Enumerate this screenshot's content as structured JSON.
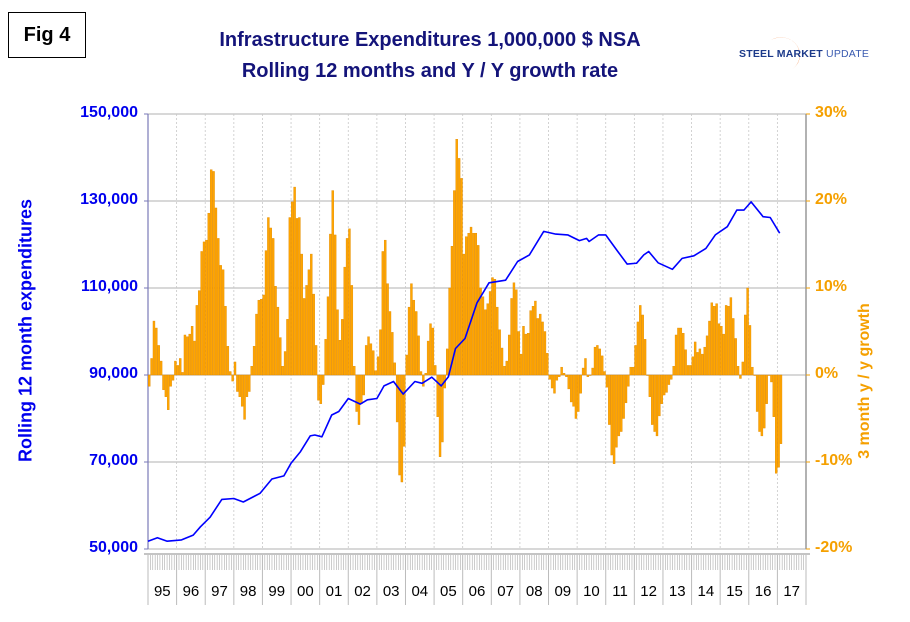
{
  "figure_label": "Fig 4",
  "logo": {
    "word1": "STEEL",
    "word2": "MARKET",
    "word3": "UPDATE"
  },
  "colors": {
    "line": "#0000ff",
    "bars": "#ffa500",
    "bar_edge": "#e08a00",
    "title": "#14147a",
    "left_axis": "#0000ee",
    "right_axis": "#f5a000"
  },
  "chart_data": {
    "type": "bar+line",
    "title": "Infrastructure Expenditures 1,000,000 $ NSA",
    "subtitle": "Rolling 12 months and Y / Y growth rate",
    "ylabel_left": "Rolling 12 month expenditures",
    "ylabel_right": "3 month y / y growth",
    "ylim_left": [
      50000,
      150000
    ],
    "ylim_right": [
      -20,
      30
    ],
    "yticks_left": [
      "150,000",
      "130,000",
      "110,000",
      "90,000",
      "70,000",
      "50,000"
    ],
    "yticks_left_values": [
      150000,
      130000,
      110000,
      90000,
      70000,
      50000
    ],
    "yticks_right": [
      "30%",
      "20%",
      "10%",
      "0%",
      "-10%",
      "-20%"
    ],
    "yticks_right_values": [
      30,
      20,
      10,
      0,
      -10,
      -20
    ],
    "xlim_years": [
      1995,
      2018
    ],
    "x_tick_labels": [
      "95",
      "96",
      "97",
      "98",
      "99",
      "00",
      "01",
      "02",
      "03",
      "04",
      "05",
      "06",
      "07",
      "08",
      "09",
      "10",
      "11",
      "12",
      "13",
      "14",
      "15",
      "16",
      "17"
    ],
    "grid": true,
    "series": [
      {
        "name": "3 month y/y growth (%)",
        "kind": "bar",
        "axis": "right",
        "start": "1995-01",
        "frequency": "monthly",
        "values": [
          -1.3,
          1.9,
          6.2,
          5.4,
          3.4,
          1.6,
          -1.7,
          -2.5,
          -4.0,
          -1.3,
          -0.6,
          1.6,
          1.1,
          1.9,
          0.3,
          4.6,
          4.4,
          4.7,
          5.6,
          3.9,
          8.0,
          9.7,
          14.2,
          15.3,
          15.5,
          18.6,
          23.6,
          23.4,
          19.2,
          15.7,
          12.6,
          12.1,
          7.9,
          3.3,
          0.4,
          -0.7,
          1.5,
          -1.9,
          -2.5,
          -3.6,
          -5.1,
          -2.5,
          -1.9,
          1.0,
          3.3,
          7.0,
          8.6,
          8.7,
          9.2,
          14.3,
          18.1,
          16.9,
          15.7,
          10.2,
          7.8,
          4.3,
          1.0,
          2.7,
          6.4,
          18.1,
          19.9,
          21.6,
          18.0,
          18.1,
          13.9,
          8.8,
          10.3,
          12.1,
          13.9,
          9.3,
          3.4,
          -2.9,
          -3.3,
          -1.1,
          4.1,
          9.0,
          16.2,
          21.2,
          16.1,
          7.5,
          4.0,
          6.4,
          12.4,
          15.7,
          16.8,
          10.3,
          1.0,
          -4.2,
          -5.7,
          -3.3,
          -2.3,
          3.4,
          4.4,
          3.6,
          2.8,
          0.5,
          2.1,
          5.2,
          14.2,
          15.5,
          10.5,
          7.3,
          4.9,
          1.4,
          -5.4,
          -11.5,
          -12.3,
          -8.2,
          2.3,
          7.8,
          10.5,
          8.6,
          7.3,
          4.5,
          0.4,
          -1.3,
          0.2,
          3.9,
          5.9,
          5.4,
          1.1,
          -4.8,
          -9.4,
          -7.7,
          -1.5,
          3.0,
          10.0,
          14.8,
          21.2,
          27.1,
          24.9,
          22.6,
          13.9,
          15.9,
          16.3,
          17.0,
          16.3,
          16.3,
          14.9,
          10.0,
          9.0,
          7.5,
          8.2,
          9.6,
          11.2,
          11.0,
          7.8,
          5.2,
          3.1,
          1.0,
          1.6,
          4.6,
          8.8,
          10.6,
          9.8,
          5.0,
          2.4,
          5.6,
          4.7,
          4.8,
          7.4,
          7.9,
          8.5,
          6.5,
          7.0,
          6.1,
          5.0,
          2.5,
          -0.5,
          -1.5,
          -2.1,
          -0.6,
          -0.2,
          0.9,
          0.2,
          -0.2,
          -1.6,
          -3.1,
          -3.6,
          -5.0,
          -4.2,
          -2.1,
          0.8,
          1.9,
          -0.2,
          0,
          0.8,
          3.2,
          3.4,
          3.0,
          2.2,
          0.4,
          -1.4,
          -5.7,
          -9.2,
          -10.2,
          -8.3,
          -7.0,
          -6.5,
          -5.0,
          -3.2,
          -1.3,
          0.9,
          0.9,
          3.4,
          6.1,
          8.0,
          6.9,
          4.1,
          0,
          -2.5,
          -5.7,
          -6.5,
          -7.0,
          -4.7,
          -3.3,
          -2.3,
          -2.0,
          -1.1,
          -0.5,
          1.0,
          4.6,
          5.4,
          5.4,
          4.8,
          2.9,
          1.1,
          1.1,
          2.1,
          3.8,
          2.6,
          3.0,
          2.4,
          3.2,
          4.5,
          6.2,
          8.3,
          7.9,
          8.2,
          5.9,
          5.6,
          4.7,
          8.0,
          7.9,
          8.9,
          6.5,
          4.2,
          1.0,
          -0.4,
          1.5,
          6.9,
          10.0,
          5.7,
          0.9,
          0,
          -4.2,
          -6.5,
          -7.0,
          -6.1,
          -3.3,
          0,
          -0.8,
          -4.8,
          -11.3,
          -10.6,
          -7.9
        ]
      },
      {
        "name": "Rolling 12 month expenditures ($ millions)",
        "kind": "line",
        "axis": "left",
        "points": [
          [
            1995.0,
            51800
          ],
          [
            1995.33,
            52600
          ],
          [
            1995.67,
            51800
          ],
          [
            1996.17,
            52100
          ],
          [
            1996.58,
            53200
          ],
          [
            1996.83,
            55100
          ],
          [
            1997.17,
            57300
          ],
          [
            1997.58,
            61400
          ],
          [
            1998.0,
            61600
          ],
          [
            1998.33,
            60800
          ],
          [
            1998.92,
            62800
          ],
          [
            1999.33,
            66100
          ],
          [
            1999.75,
            66800
          ],
          [
            2000.0,
            69700
          ],
          [
            2000.33,
            72400
          ],
          [
            2000.67,
            76000
          ],
          [
            2000.83,
            76200
          ],
          [
            2001.08,
            75800
          ],
          [
            2001.42,
            80800
          ],
          [
            2001.67,
            81600
          ],
          [
            2002.0,
            84600
          ],
          [
            2002.42,
            83300
          ],
          [
            2002.67,
            84300
          ],
          [
            2003.0,
            84600
          ],
          [
            2003.25,
            87500
          ],
          [
            2003.58,
            88500
          ],
          [
            2003.92,
            85600
          ],
          [
            2004.33,
            88500
          ],
          [
            2004.58,
            88100
          ],
          [
            2004.92,
            89500
          ],
          [
            2005.25,
            87500
          ],
          [
            2005.5,
            89600
          ],
          [
            2005.75,
            96100
          ],
          [
            2006.08,
            98400
          ],
          [
            2006.5,
            106600
          ],
          [
            2006.92,
            111200
          ],
          [
            2007.5,
            111800
          ],
          [
            2007.92,
            116100
          ],
          [
            2008.33,
            117600
          ],
          [
            2008.83,
            123000
          ],
          [
            2009.25,
            122400
          ],
          [
            2009.67,
            122200
          ],
          [
            2010.08,
            120900
          ],
          [
            2010.33,
            121400
          ],
          [
            2010.42,
            120700
          ],
          [
            2010.75,
            122200
          ],
          [
            2011.0,
            122200
          ],
          [
            2011.42,
            118400
          ],
          [
            2011.75,
            115500
          ],
          [
            2012.08,
            115700
          ],
          [
            2012.33,
            117600
          ],
          [
            2012.5,
            118400
          ],
          [
            2012.83,
            115800
          ],
          [
            2013.33,
            114300
          ],
          [
            2013.67,
            116800
          ],
          [
            2014.08,
            117400
          ],
          [
            2014.5,
            119100
          ],
          [
            2014.83,
            122200
          ],
          [
            2015.25,
            124100
          ],
          [
            2015.58,
            127900
          ],
          [
            2015.83,
            127900
          ],
          [
            2016.08,
            129800
          ],
          [
            2016.5,
            126400
          ],
          [
            2016.75,
            126200
          ],
          [
            2017.08,
            122600
          ]
        ]
      }
    ]
  }
}
